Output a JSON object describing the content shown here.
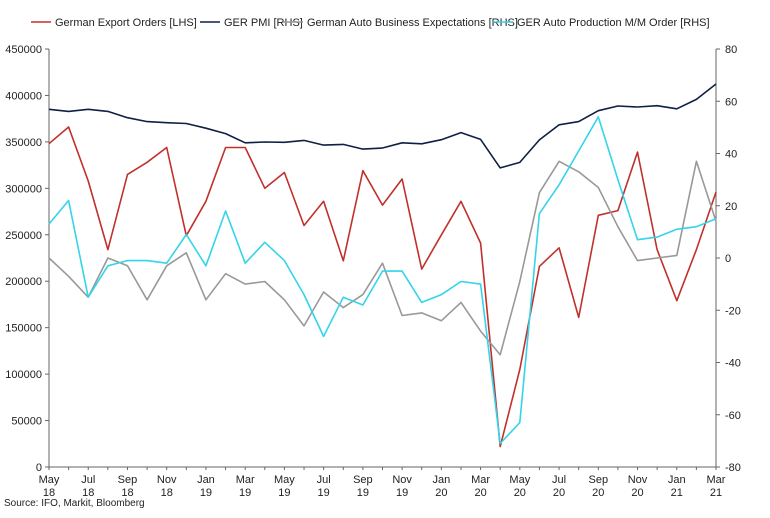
{
  "chart_data": {
    "type": "line",
    "legend_position": "top",
    "grid": false,
    "x_ticks": [
      {
        "month": "May",
        "year": "18"
      },
      {
        "month": "Jul",
        "year": "18"
      },
      {
        "month": "Sep",
        "year": "18"
      },
      {
        "month": "Nov",
        "year": "18"
      },
      {
        "month": "Jan",
        "year": "19"
      },
      {
        "month": "Mar",
        "year": "19"
      },
      {
        "month": "May",
        "year": "19"
      },
      {
        "month": "Jul",
        "year": "19"
      },
      {
        "month": "Sep",
        "year": "19"
      },
      {
        "month": "Nov",
        "year": "19"
      },
      {
        "month": "Jan",
        "year": "20"
      },
      {
        "month": "Mar",
        "year": "20"
      },
      {
        "month": "May",
        "year": "20"
      },
      {
        "month": "Jul",
        "year": "20"
      },
      {
        "month": "Sep",
        "year": "20"
      },
      {
        "month": "Nov",
        "year": "20"
      },
      {
        "month": "Jan",
        "year": "21"
      },
      {
        "month": "Mar",
        "year": "21"
      }
    ],
    "x_months": [
      "May 18",
      "Jun 18",
      "Jul 18",
      "Aug 18",
      "Sep 18",
      "Oct 18",
      "Nov 18",
      "Dec 18",
      "Jan 19",
      "Feb 19",
      "Mar 19",
      "Apr 19",
      "May 19",
      "Jun 19",
      "Jul 19",
      "Aug 19",
      "Sep 19",
      "Oct 19",
      "Nov 19",
      "Dec 19",
      "Jan 20",
      "Feb 20",
      "Mar 20",
      "Apr 20",
      "May 20",
      "Jun 20",
      "Jul 20",
      "Aug 20",
      "Sep 20",
      "Oct 20",
      "Nov 20",
      "Dec 20",
      "Jan 21",
      "Feb 21",
      "Mar 21"
    ],
    "y_left": {
      "min": 0,
      "max": 450000,
      "ticks": [
        "0",
        "50000",
        "100000",
        "150000",
        "200000",
        "250000",
        "300000",
        "350000",
        "400000",
        "450000"
      ]
    },
    "y_right": {
      "min": -80,
      "max": 80,
      "ticks": [
        "-80",
        "-60",
        "-40",
        "-20",
        "0",
        "20",
        "40",
        "60",
        "80"
      ]
    },
    "series": [
      {
        "name": "German Export Orders [LHS]",
        "axis": "left",
        "color": "#c0312b",
        "values": [
          348000,
          366000,
          308000,
          234000,
          315000,
          328000,
          344000,
          249000,
          286000,
          344000,
          344000,
          300000,
          317000,
          260000,
          286000,
          222000,
          319000,
          282000,
          310000,
          213000,
          250000,
          286000,
          241000,
          22000,
          105000,
          216000,
          236000,
          161000,
          271000,
          276000,
          339000,
          234000,
          179000,
          234000,
          296000
        ]
      },
      {
        "name": "GER PMI [RHS]",
        "axis": "right",
        "color": "#0f2044",
        "values": [
          56.9,
          56.1,
          56.9,
          56.1,
          53.7,
          52.2,
          51.8,
          51.5,
          49.7,
          47.6,
          44.1,
          44.4,
          44.3,
          45.0,
          43.2,
          43.5,
          41.7,
          42.1,
          44.1,
          43.7,
          45.3,
          48.0,
          45.4,
          34.5,
          36.6,
          45.2,
          51.0,
          52.2,
          56.4,
          58.2,
          57.8,
          58.3,
          57.1,
          60.7,
          66.6
        ]
      },
      {
        "name": "German Auto Business Expectations [RHS]",
        "axis": "right",
        "color": "#999999",
        "values": [
          0,
          -7,
          -15,
          0,
          -3,
          -16,
          -3,
          2,
          -16,
          -6,
          -10,
          -9,
          -16,
          -26,
          -13,
          -19,
          -14,
          -2,
          -22,
          -21,
          -24,
          -17,
          -28,
          -37,
          -9,
          25,
          37,
          33,
          27,
          12,
          -1,
          0,
          1,
          37,
          14
        ]
      },
      {
        "name": "GER Auto Production M/M Order [RHS]",
        "axis": "right",
        "color": "#34d4ea",
        "values": [
          13,
          22,
          -15,
          -3,
          -1,
          -1,
          -2,
          9,
          -3,
          18,
          -2,
          6,
          -1,
          -14,
          -30,
          -15,
          -18,
          -5,
          -5,
          -17,
          -14,
          -9,
          -10,
          -71,
          -63,
          17,
          28,
          41,
          54,
          30,
          7,
          8,
          11,
          12,
          15
        ]
      }
    ],
    "source": "Source: IFO, Markit, Bloomberg"
  }
}
